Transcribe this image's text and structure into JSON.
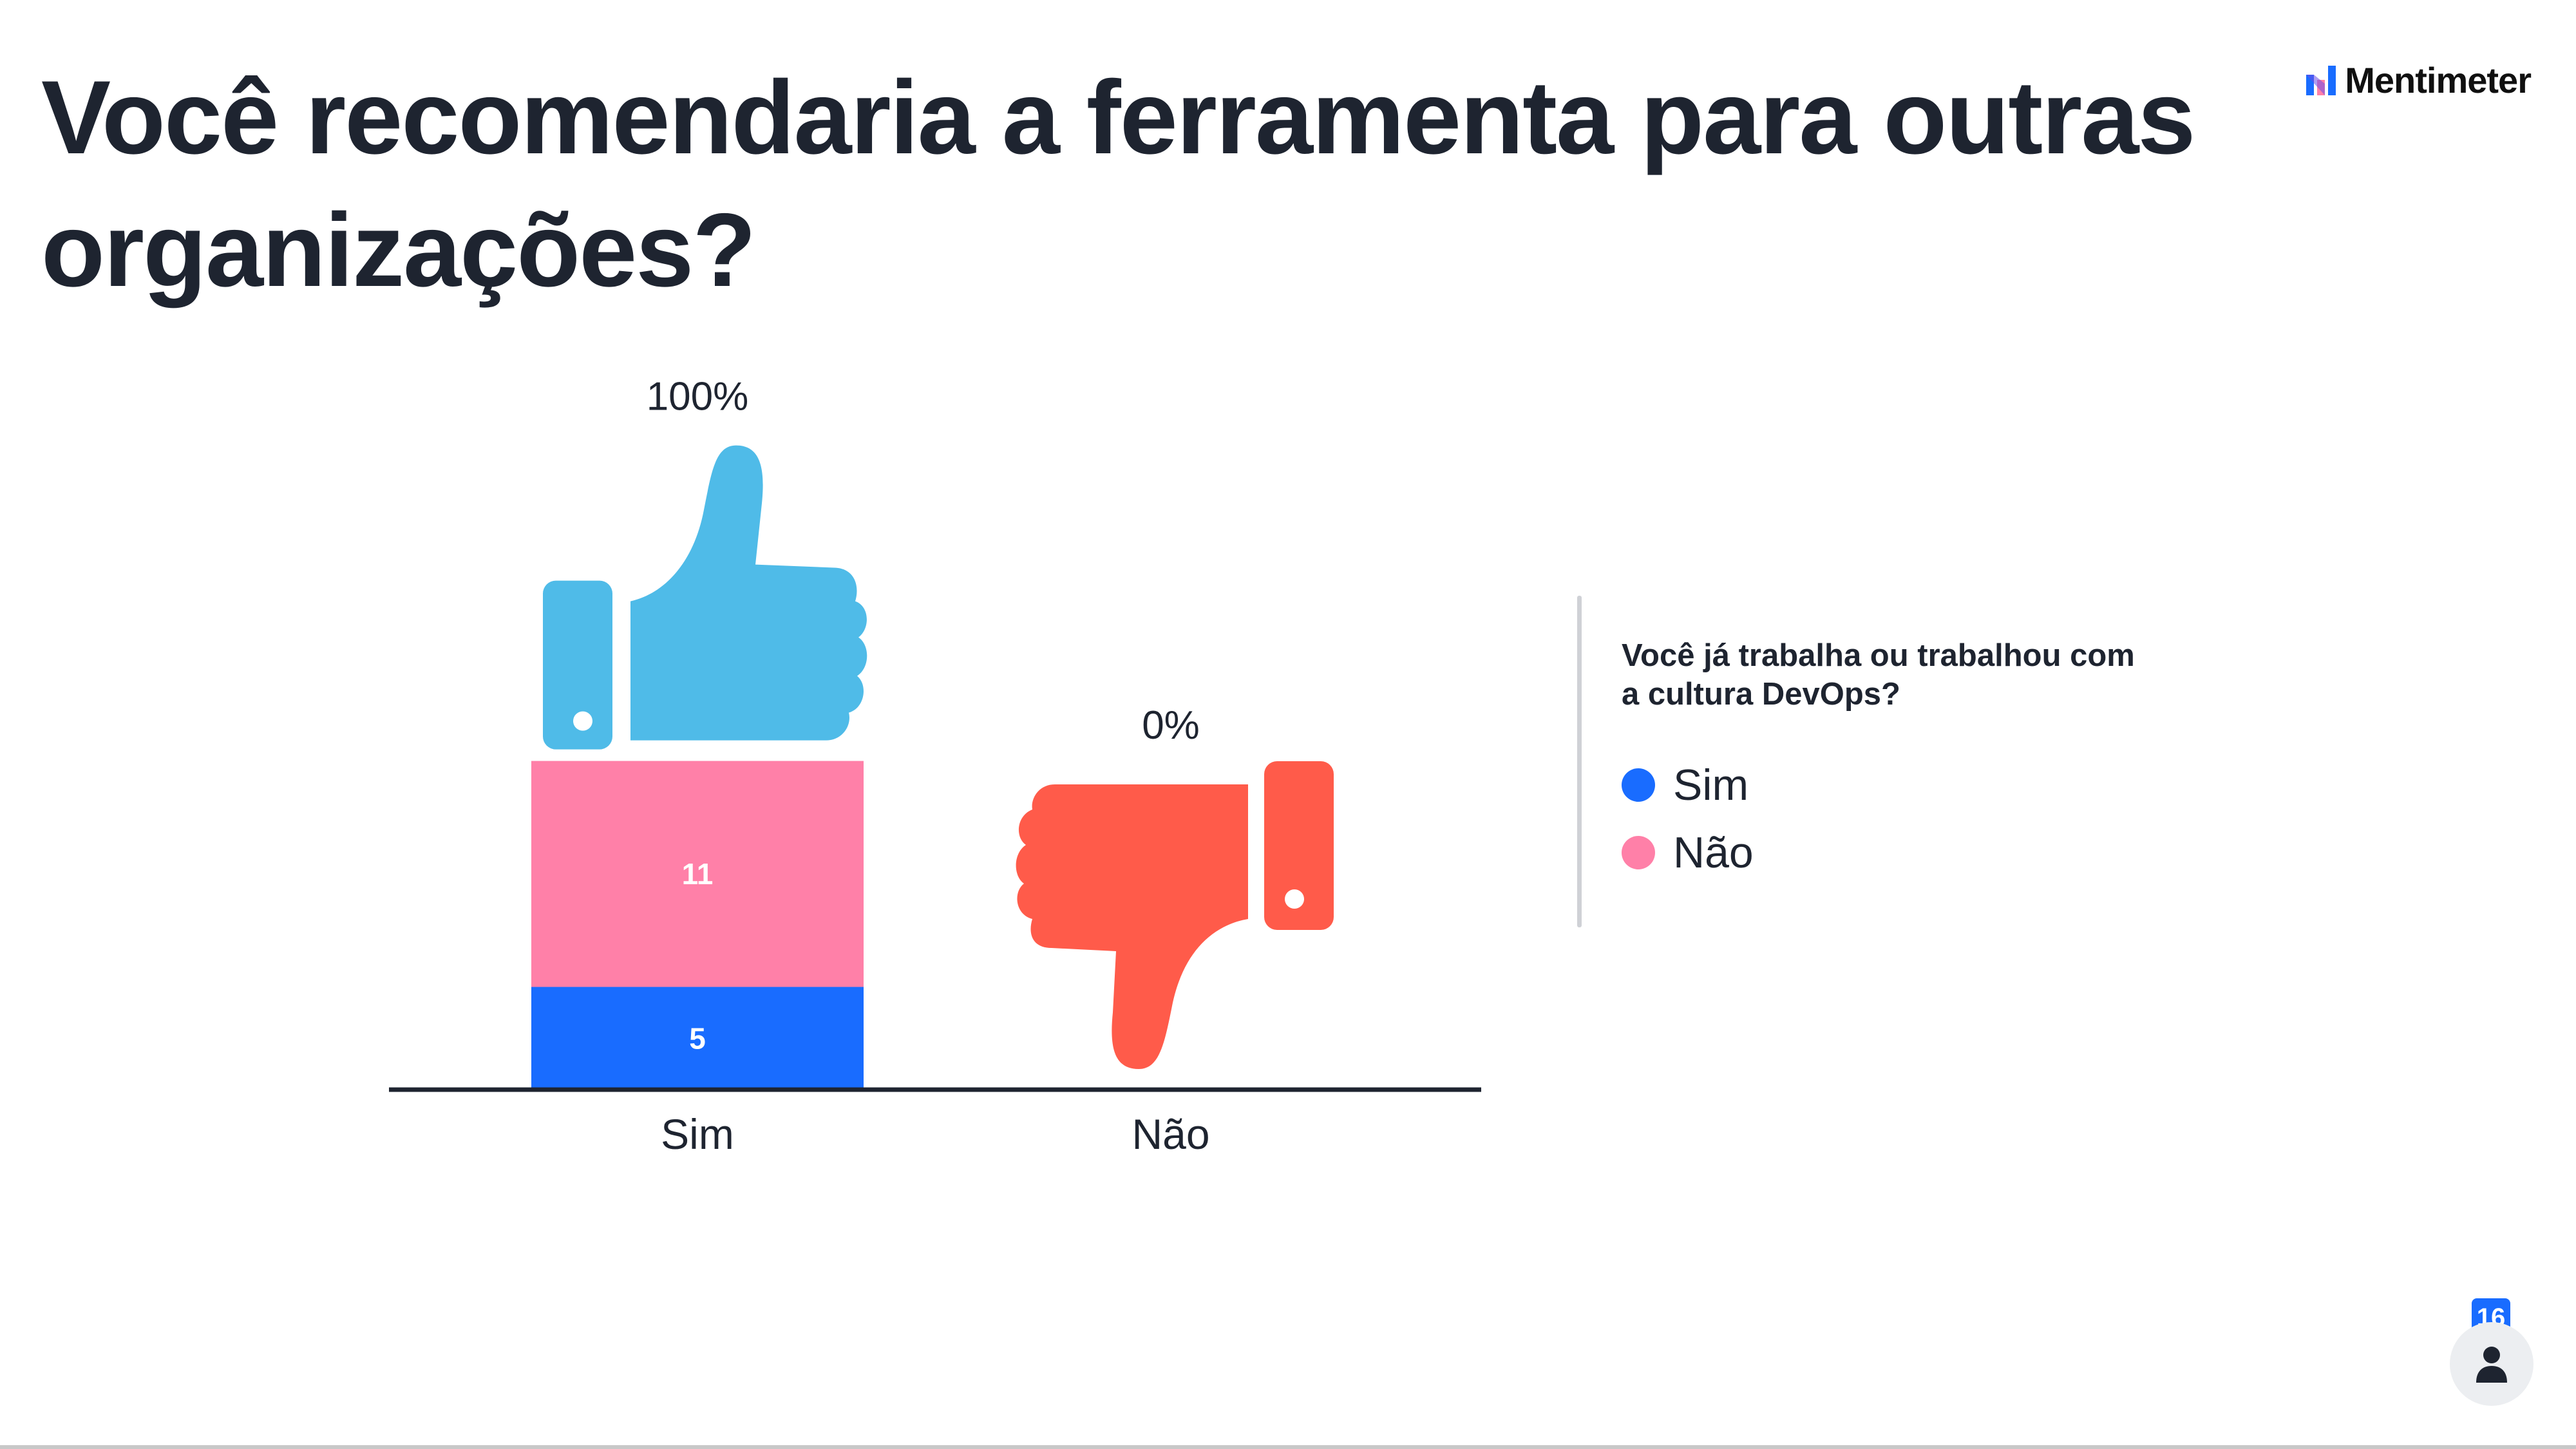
{
  "title": "Você recomendaria a ferramenta para outras organizações?",
  "brand": {
    "name": "Mentimeter"
  },
  "chart_data": {
    "type": "bar",
    "stacked": true,
    "categories": [
      "Sim",
      "Não"
    ],
    "percentages": [
      "100%",
      "0%"
    ],
    "series": [
      {
        "name": "Sim",
        "values": [
          5,
          0
        ],
        "color": "#196cff"
      },
      {
        "name": "Não",
        "values": [
          11,
          0
        ],
        "color": "#ff80a8"
      }
    ],
    "icons": [
      "thumbs-up-icon",
      "thumbs-down-icon"
    ],
    "icon_colors": {
      "thumbs-up": "#4fbbe8",
      "thumbs-down": "#ff5b4a"
    },
    "legend_title": "Você já trabalha ou trabalhou com a cultura DevOps?",
    "legend_position": "right"
  },
  "legend": {
    "title": "Você já trabalha ou trabalhou com a cultura DevOps?",
    "items": [
      {
        "label": "Sim",
        "color": "#196cff"
      },
      {
        "label": "Não",
        "color": "#ff80a8"
      }
    ]
  },
  "participants": {
    "count": "16",
    "icon": "person-icon"
  },
  "colors": {
    "text": "#1e2430",
    "axis": "#1e2430",
    "background": "#ffffff"
  }
}
